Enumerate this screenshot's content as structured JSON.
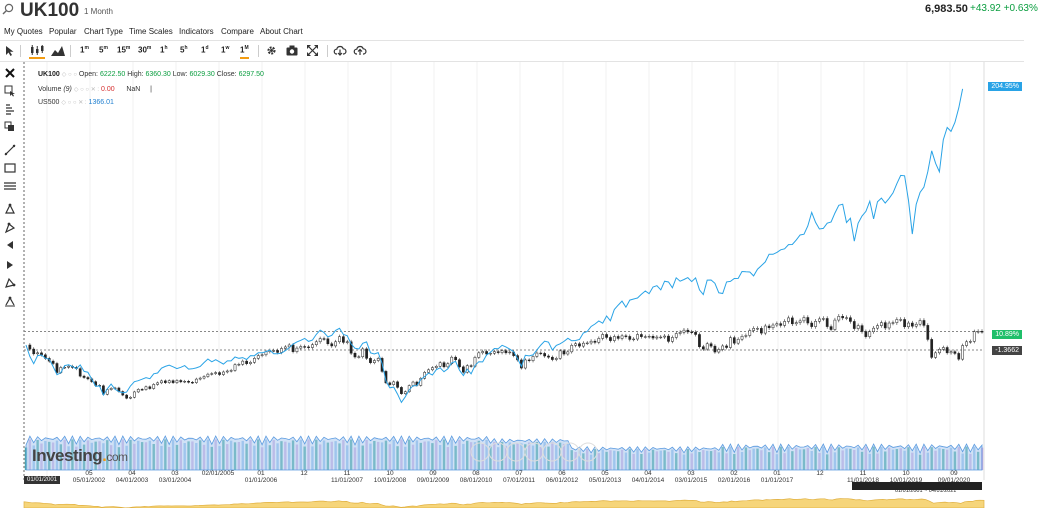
{
  "header": {
    "symbol": "UK100",
    "interval": "1 Month",
    "price": "6,983.50",
    "change": "+43.92 +0.63%"
  },
  "menu": [
    "My Quotes",
    "Popular",
    "Chart Type",
    "Time Scales",
    "Indicators",
    "Compare",
    "About Chart"
  ],
  "toolbar": {
    "intervals": [
      {
        "n": "1",
        "u": "m"
      },
      {
        "n": "5",
        "u": "m"
      },
      {
        "n": "15",
        "u": "m"
      },
      {
        "n": "30",
        "u": "m"
      },
      {
        "n": "1",
        "u": "h"
      },
      {
        "n": "5",
        "u": "h"
      },
      {
        "n": "1",
        "u": "d"
      },
      {
        "n": "1",
        "u": "w"
      },
      {
        "n": "1",
        "u": "M"
      }
    ],
    "active_interval_index": 8
  },
  "legend": {
    "main": {
      "name": "UK100",
      "open_label": "Open:",
      "open": "6222.50",
      "high_label": "High:",
      "high": "6360.30",
      "low_label": "Low:",
      "low": "6029.30",
      "close_label": "Close:",
      "close": "6297.50"
    },
    "volume": {
      "name": "Volume",
      "param": "(9)",
      "value": "0.00",
      "nan": "NaN"
    },
    "compare": {
      "name": "US500",
      "value": "1366.01"
    }
  },
  "axis": {
    "us500_pct": "204.95%",
    "uk_pct": "10.89%",
    "ref_value": "-1.3662"
  },
  "time_labels": [
    {
      "top": "05",
      "bottom": "05/01/2002"
    },
    {
      "top": "04",
      "bottom": "04/01/2003"
    },
    {
      "top": "03",
      "bottom": "03/01/2004"
    },
    {
      "top": "",
      "bottom": "02/01/2005"
    },
    {
      "top": "01",
      "bottom": "01/01/2006"
    },
    {
      "top": "12",
      "bottom": ""
    },
    {
      "top": "11",
      "bottom": "11/01/2007"
    },
    {
      "top": "10",
      "bottom": "10/01/2008"
    },
    {
      "top": "09",
      "bottom": "09/01/2009"
    },
    {
      "top": "08",
      "bottom": "08/01/2010"
    },
    {
      "top": "07",
      "bottom": "07/01/2011"
    },
    {
      "top": "06",
      "bottom": "06/01/2012"
    },
    {
      "top": "05",
      "bottom": "05/01/2013"
    },
    {
      "top": "04",
      "bottom": "04/01/2014"
    },
    {
      "top": "03",
      "bottom": "03/01/2015"
    },
    {
      "top": "02",
      "bottom": "02/01/2016"
    },
    {
      "top": "01",
      "bottom": "01/01/2017"
    },
    {
      "top": "12",
      "bottom": ""
    },
    {
      "top": "11",
      "bottom": "11/01/2018"
    },
    {
      "top": "10",
      "bottom": "10/01/2019"
    },
    {
      "top": "09",
      "bottom": "09/01/2020"
    }
  ],
  "first_date": "01/01/2001",
  "range_text": "01/01/2001 ~ 04/01/2021",
  "watermark": {
    "brand": "Investing",
    "dot": ".",
    "tld": "com"
  },
  "colors": {
    "up": "#1f9a8a",
    "down": "#d24a4a",
    "compare": "#29a3e6",
    "accent": "#f39c12"
  },
  "chart_data": {
    "type": "line",
    "x_start": "2001-01",
    "x_step": "1 month",
    "series": [
      {
        "name": "UK100",
        "values": [
          6297,
          6090,
          5850,
          5900,
          5800,
          5620,
          5480,
          5360,
          4900,
          5160,
          5170,
          5220,
          5160,
          5100,
          4720,
          4650,
          4580,
          4440,
          4250,
          4230,
          3800,
          4040,
          4100,
          4120,
          3940,
          3760,
          3600,
          3650,
          3920,
          4050,
          4040,
          4180,
          4090,
          4300,
          4380,
          4480,
          4390,
          4490,
          4390,
          4500,
          4430,
          4460,
          4410,
          4390,
          4570,
          4620,
          4700,
          4820,
          4850,
          4900,
          4800,
          4930,
          4980,
          5010,
          5300,
          5320,
          5480,
          5350,
          5420,
          5620,
          5760,
          5800,
          5960,
          6020,
          6020,
          5920,
          6120,
          6200,
          6300,
          5960,
          6140,
          6220,
          6200,
          6170,
          6310,
          6460,
          6620,
          6610,
          6360,
          6250,
          6460,
          6720,
          6430,
          6460,
          5880,
          5690,
          5700,
          6100,
          5620,
          5400,
          5510,
          5620,
          4960,
          4380,
          4290,
          4430,
          4150,
          3830,
          3930,
          4240,
          4420,
          4250,
          4610,
          4910,
          5040,
          5150,
          5220,
          5400,
          5190,
          5350,
          5680,
          5550,
          5190,
          4920,
          5250,
          5220,
          5670,
          5900,
          5970,
          5840,
          5880,
          5960,
          5910,
          6010,
          5900,
          5940,
          5760,
          5540,
          5130,
          5540,
          5500,
          5720,
          5890,
          5870,
          5740,
          5680,
          5560,
          5620,
          6000,
          5840,
          5950,
          6280,
          6360,
          6240,
          6390,
          6400,
          6490,
          6430,
          6630,
          6830,
          6680,
          6520,
          6730,
          6630,
          6760,
          6730,
          6580,
          6600,
          6830,
          6720,
          6720,
          6740,
          6650,
          6700,
          6700,
          6750,
          6480,
          6680,
          6880,
          6940,
          7050,
          6960,
          6940,
          6830,
          6210,
          6090,
          6360,
          6240,
          5940,
          6070,
          6250,
          6170,
          6670,
          6390,
          6590,
          6740,
          6780,
          7030,
          7140,
          7140,
          6900,
          7260,
          7170,
          7310,
          7380,
          7290,
          7490,
          7670,
          7370,
          7430,
          7520,
          7690,
          7410,
          7230,
          7500,
          7620,
          7640,
          7230,
          7080,
          7560,
          7750,
          7670,
          7680,
          7490,
          7130,
          7280,
          6980,
          6720,
          6970,
          7150,
          7280,
          7430,
          7160,
          7410,
          7430,
          7590,
          7590,
          7220,
          7410,
          7250,
          7350,
          7540,
          7290,
          6580,
          5670,
          5900,
          6080,
          6170,
          5900,
          5960,
          5870,
          5580,
          6270,
          6460,
          6480,
          6970,
          6990,
          6980
        ]
      },
      {
        "name": "US500",
        "values": [
          1366,
          1240,
          1160,
          1250,
          1256,
          1220,
          1210,
          1130,
          1040,
          1060,
          1140,
          1148,
          1130,
          1106,
          1147,
          1076,
          1067,
          990,
          911,
          916,
          815,
          885,
          936,
          880,
          855,
          841,
          848,
          916,
          963,
          974,
          990,
          1008,
          996,
          1050,
          1058,
          1111,
          1131,
          1144,
          1126,
          1107,
          1121,
          1140,
          1101,
          1104,
          1114,
          1130,
          1173,
          1212,
          1181,
          1204,
          1181,
          1156,
          1191,
          1191,
          1234,
          1220,
          1228,
          1207,
          1249,
          1248,
          1280,
          1280,
          1294,
          1310,
          1270,
          1270,
          1276,
          1303,
          1335,
          1377,
          1400,
          1418,
          1438,
          1406,
          1420,
          1482,
          1530,
          1503,
          1455,
          1473,
          1526,
          1549,
          1481,
          1468,
          1378,
          1330,
          1322,
          1385,
          1400,
          1280,
          1267,
          1282,
          1164,
          968,
          896,
          903,
          825,
          735,
          797,
          872,
          919,
          919,
          987,
          1020,
          1057,
          1036,
          1095,
          1115,
          1073,
          1104,
          1169,
          1186,
          1089,
          1030,
          1101,
          1049,
          1141,
          1183,
          1180,
          1257,
          1286,
          1327,
          1325,
          1363,
          1345,
          1320,
          1292,
          1218,
          1131,
          1253,
          1246,
          1257,
          1312,
          1365,
          1408,
          1397,
          1310,
          1362,
          1379,
          1406,
          1440,
          1412,
          1416,
          1426,
          1498,
          1514,
          1569,
          1597,
          1630,
          1606,
          1685,
          1632,
          1756,
          1805,
          1848,
          1782,
          1859,
          1872,
          1883,
          1923,
          1960,
          1930,
          2003,
          2018,
          1972,
          2067,
          2058,
          1995,
          2105,
          2067,
          2086,
          2107,
          2063,
          2103,
          1972,
          1920,
          2079,
          2080,
          2044,
          1940,
          1932,
          2059,
          2065,
          2097,
          2098,
          2174,
          2170,
          2168,
          2126,
          2199,
          2239,
          2279,
          2364,
          2363,
          2384,
          2412,
          2423,
          2470,
          2471,
          2519,
          2575,
          2584,
          2674,
          2823,
          2714,
          2641,
          2648,
          2705,
          2718,
          2816,
          2901,
          2914,
          2712,
          2760,
          2507,
          2704,
          2784,
          2834,
          2946,
          2752,
          2941,
          2980,
          2926,
          2977,
          3038,
          3140,
          3230,
          3226,
          2954,
          2585,
          2912,
          3044,
          3100,
          3271,
          3500,
          3363,
          3270,
          3622,
          3756,
          3714,
          3811,
          3973,
          4181
        ]
      },
      {
        "name": "Volume",
        "values": []
      }
    ]
  }
}
